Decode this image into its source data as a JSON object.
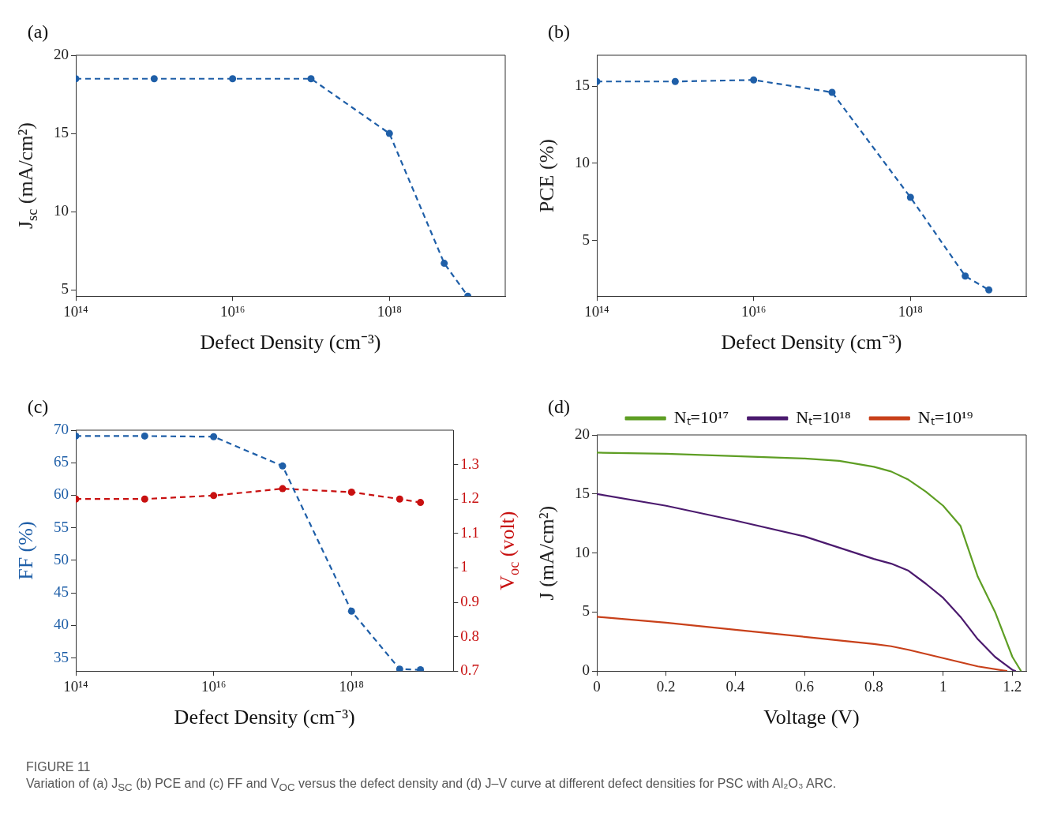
{
  "chart_data": [
    {
      "type": "line",
      "title": "(a)",
      "xlabel": "Defect Density (cm⁻³)",
      "ylabel": "J$_{sc}$ (mA/cm²)",
      "log": "x",
      "marker": "circle",
      "line_style": "dashed",
      "grid": false,
      "legend": false,
      "xlim": [
        100000000000000.0,
        3e+19
      ],
      "xticks": [
        {
          "value": 100000000000000.0,
          "label": "10¹⁴"
        },
        {
          "value": 1e+16,
          "label": "10¹⁶"
        },
        {
          "value": 1e+18,
          "label": "10¹⁸"
        }
      ],
      "ylim": [
        4.6,
        20
      ],
      "yticks": [
        5,
        10,
        15,
        20
      ],
      "x": [
        100000000000000.0,
        1000000000000000.0,
        1e+16,
        1e+17,
        1e+18,
        5e+18,
        1e+19
      ],
      "series": [
        {
          "color": "#1f5fa8",
          "values": [
            18.5,
            18.5,
            18.5,
            18.5,
            15.0,
            6.7,
            4.6
          ]
        }
      ]
    },
    {
      "type": "line",
      "title": "(b)",
      "xlabel": "Defect Density (cm⁻³)",
      "ylabel": "PCE (%)",
      "log": "x",
      "marker": "circle",
      "line_style": "dashed",
      "grid": false,
      "legend": false,
      "xlim": [
        100000000000000.0,
        3e+19
      ],
      "xticks": [
        {
          "value": 100000000000000.0,
          "label": "10¹⁴"
        },
        {
          "value": 1e+16,
          "label": "10¹⁶"
        },
        {
          "value": 1e+18,
          "label": "10¹⁸"
        }
      ],
      "ylim": [
        1.4,
        17
      ],
      "yticks": [
        5,
        10,
        15
      ],
      "x": [
        100000000000000.0,
        1000000000000000.0,
        1e+16,
        1e+17,
        1e+18,
        5e+18,
        1e+19
      ],
      "series": [
        {
          "color": "#1f5fa8",
          "values": [
            15.3,
            15.3,
            15.4,
            14.6,
            7.8,
            2.7,
            1.8
          ]
        }
      ]
    },
    {
      "type": "line",
      "title": "(c)",
      "xlabel": "Defect Density (cm⁻³)",
      "ylabel": "FF (%)",
      "y2label": "V$_{oc}$ (volt)",
      "log": "x",
      "marker": "circle",
      "line_style": "dashed",
      "grid": false,
      "legend": false,
      "xlim": [
        100000000000000.0,
        3e+19
      ],
      "xticks": [
        {
          "value": 100000000000000.0,
          "label": "10¹⁴"
        },
        {
          "value": 1e+16,
          "label": "10¹⁶"
        },
        {
          "value": 1e+18,
          "label": "10¹⁸"
        }
      ],
      "ylim": [
        33,
        70
      ],
      "yticks": [
        35,
        40,
        45,
        50,
        55,
        60,
        65,
        70
      ],
      "y2lim": [
        0.7,
        1.4
      ],
      "y2ticks": [
        0.7,
        0.8,
        0.9,
        1,
        1.1,
        1.2,
        1.3
      ],
      "x": [
        100000000000000.0,
        1000000000000000.0,
        1e+16,
        1e+17,
        1e+18,
        5e+18,
        1e+19
      ],
      "series": [
        {
          "color": "#1f5fa8",
          "values": [
            69.1,
            69.1,
            69.0,
            64.5,
            42.2,
            33.3,
            33.2
          ]
        },
        {
          "color": "#c81010",
          "axis": "y2",
          "values": [
            1.2,
            1.2,
            1.21,
            1.23,
            1.22,
            1.2,
            1.19
          ]
        }
      ]
    },
    {
      "type": "line",
      "title": "(d)",
      "xlabel": "Voltage (V)",
      "ylabel": "J (mA/cm²)",
      "marker": "none",
      "line_style": "solid",
      "grid": false,
      "legend": "top",
      "xlim": [
        0,
        1.24
      ],
      "xticks": [
        0,
        0.2,
        0.4,
        0.6,
        0.8,
        1,
        1.2
      ],
      "ylim": [
        0,
        20
      ],
      "yticks": [
        0,
        5,
        10,
        15,
        20
      ],
      "annotations": [
        "FIGURE 11",
        "Variation of (a) J$_{SC}$ (b) PCE and (c) FF and V$_{OC}$ versus the defect density and (d) J–V curve at different defect densities for PSC with Al₂O₃ ARC."
      ],
      "series": [
        {
          "name": "Nₜ=10¹⁷",
          "color": "#5e9e24",
          "x": [
            0,
            0.2,
            0.4,
            0.6,
            0.7,
            0.8,
            0.85,
            0.9,
            0.95,
            1.0,
            1.05,
            1.1,
            1.15,
            1.2,
            1.225
          ],
          "values": [
            18.5,
            18.4,
            18.2,
            18.0,
            17.8,
            17.3,
            16.9,
            16.2,
            15.2,
            14.0,
            12.3,
            8.0,
            5.0,
            1.2,
            0
          ]
        },
        {
          "name": "Nₜ=10¹⁸",
          "color": "#4b1a6e",
          "x": [
            0,
            0.2,
            0.4,
            0.6,
            0.8,
            0.85,
            0.9,
            0.95,
            1.0,
            1.05,
            1.1,
            1.15,
            1.2,
            1.21
          ],
          "values": [
            15.0,
            14.0,
            12.75,
            11.4,
            9.5,
            9.1,
            8.5,
            7.4,
            6.2,
            4.6,
            2.7,
            1.2,
            0.1,
            0
          ]
        },
        {
          "name": "Nₜ=10¹⁹",
          "color": "#c8401a",
          "x": [
            0,
            0.2,
            0.4,
            0.6,
            0.8,
            0.85,
            0.9,
            1.0,
            1.1,
            1.185
          ],
          "values": [
            4.6,
            4.1,
            3.5,
            2.9,
            2.3,
            2.1,
            1.8,
            1.1,
            0.4,
            0
          ]
        }
      ]
    }
  ]
}
